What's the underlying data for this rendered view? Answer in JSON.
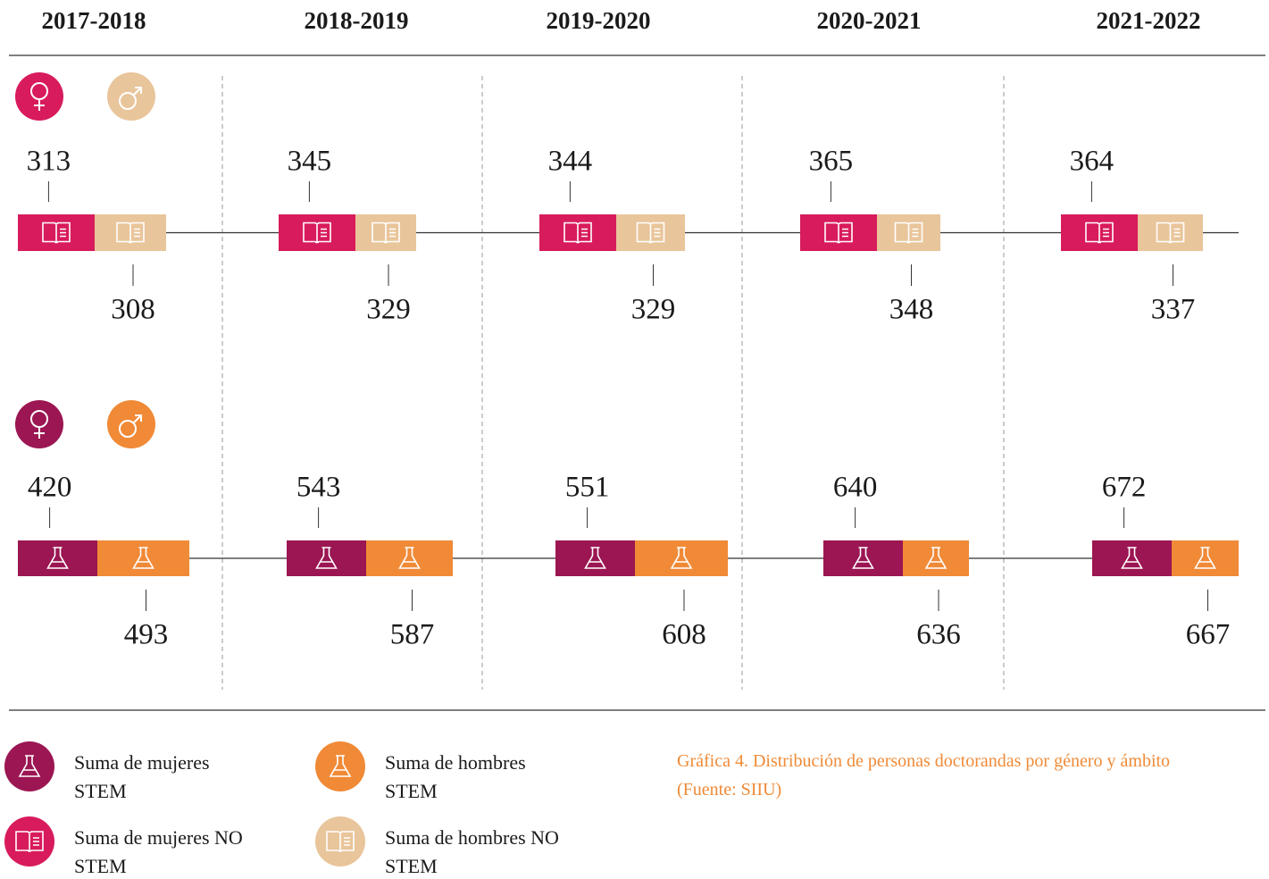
{
  "chart_data": {
    "type": "timeline",
    "title": "Gráfica 4. Distribución de personas doctorandas por género y ámbito (Fuente: SIIU)",
    "categories": [
      "2017-2018",
      "2018-2019",
      "2019-2020",
      "2020-2021",
      "2021-2022"
    ],
    "series": [
      {
        "name": "Suma de mujeres NO STEM",
        "color": "#d81b5c",
        "values": [
          313,
          345,
          344,
          365,
          364
        ]
      },
      {
        "name": "Suma de hombres NO STEM",
        "color": "#e9c59b",
        "values": [
          308,
          329,
          329,
          348,
          337
        ]
      },
      {
        "name": "Suma de mujeres STEM",
        "color": "#9b1652",
        "values": [
          420,
          543,
          551,
          640,
          672
        ]
      },
      {
        "name": "Suma de hombres STEM",
        "color": "#f08a37",
        "values": [
          493,
          587,
          608,
          636,
          667
        ]
      }
    ]
  }
}
